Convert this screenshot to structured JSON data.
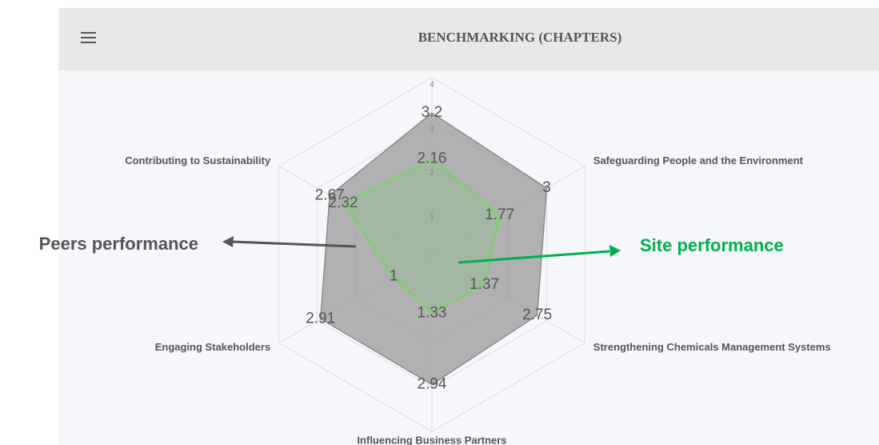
{
  "header": {
    "title": "BENCHMARKING (CHAPTERS)"
  },
  "chart_data": {
    "type": "radar",
    "categories": [
      null,
      "Safeguarding People and the Environment",
      "Strengthening Chemicals Management Systems",
      "Influencing Business Partners",
      "Engaging Stakeholders",
      "Contributing to Sustainability"
    ],
    "series": [
      {
        "name": "Peers performance",
        "color": "#8c8c8c",
        "values": [
          3.2,
          3,
          2.75,
          2.94,
          2.91,
          2.67
        ]
      },
      {
        "name": "Site performance",
        "color": "#7ccf6e",
        "values": [
          2.16,
          1.77,
          1.37,
          1.33,
          1,
          2.32
        ]
      }
    ],
    "rlim": [
      0,
      4
    ],
    "rticks": [
      1,
      2,
      3,
      4
    ],
    "grid": true
  }
}
